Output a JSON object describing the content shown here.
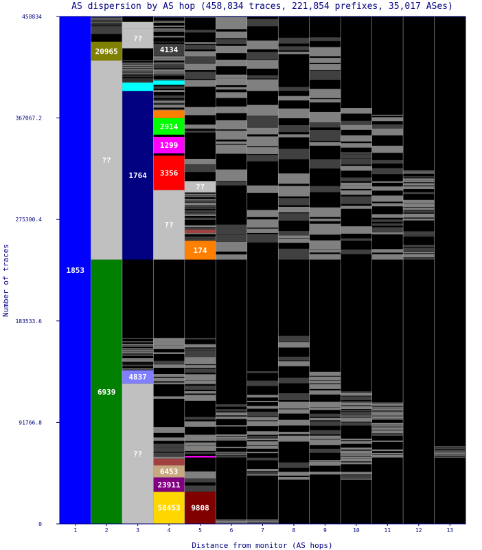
{
  "chart_data": {
    "type": "bar",
    "title": "AS dispersion by AS hop (458,834 traces, 221,854 prefixes, 35,017 ASes)",
    "xlabel": "Distance from monitor (AS hops)",
    "ylabel": "Number of traces",
    "ylim": [
      0,
      458834
    ],
    "yticks": [
      "0",
      "91766.8",
      "183533.6",
      "275300.4",
      "367067.2",
      "458834"
    ],
    "xticks": [
      "1",
      "2",
      "3",
      "4",
      "5",
      "6",
      "7",
      "8",
      "9",
      "10",
      "11",
      "12",
      "13"
    ],
    "grid": false,
    "legend": "none",
    "colors": {
      "background": "#000000",
      "divider": "#aaaaaa",
      "noise": "#808080",
      "noise_dark": "#404040"
    },
    "segments": [
      {
        "hop": 1,
        "y0": 0,
        "y1": 458834,
        "color": "#0000ff",
        "label": "1853"
      },
      {
        "hop": 2,
        "y0": 0,
        "y1": 239000,
        "color": "#008000",
        "label": "6939"
      },
      {
        "hop": 2,
        "y0": 239000,
        "y1": 419000,
        "color": "#c0c0c0",
        "label": "??"
      },
      {
        "hop": 2,
        "y0": 419000,
        "y1": 436000,
        "color": "#808000",
        "label": "20965"
      },
      {
        "hop": 2,
        "y0": 443000,
        "y1": 450000,
        "color": "#404040",
        "label": ""
      },
      {
        "hop": 3,
        "y0": 0,
        "y1": 127000,
        "color": "#c0c0c0",
        "label": "??"
      },
      {
        "hop": 3,
        "y0": 127000,
        "y1": 139000,
        "color": "#8080ff",
        "label": "4837"
      },
      {
        "hop": 3,
        "y0": 239000,
        "y1": 391500,
        "color": "#000080",
        "label": "1764"
      },
      {
        "hop": 3,
        "y0": 391500,
        "y1": 399000,
        "color": "#00ffff",
        "label": ""
      },
      {
        "hop": 3,
        "y0": 448000,
        "y1": 454000,
        "color": "#c0c0c0",
        "label": ""
      },
      {
        "hop": 3,
        "y0": 430000,
        "y1": 448000,
        "color": "#c0c0c0",
        "label": "??"
      },
      {
        "hop": 4,
        "y0": 0,
        "y1": 29000,
        "color": "#ffd700",
        "label": "58453"
      },
      {
        "hop": 4,
        "y0": 29000,
        "y1": 42000,
        "color": "#800080",
        "label": "23911"
      },
      {
        "hop": 4,
        "y0": 42000,
        "y1": 53000,
        "color": "#c8a880",
        "label": "6453"
      },
      {
        "hop": 4,
        "y0": 53000,
        "y1": 59000,
        "color": "#a04040",
        "label": ""
      },
      {
        "hop": 4,
        "y0": 239000,
        "y1": 302000,
        "color": "#c0c0c0",
        "label": "??"
      },
      {
        "hop": 4,
        "y0": 302000,
        "y1": 333000,
        "color": "#ff0000",
        "label": "3356"
      },
      {
        "hop": 4,
        "y0": 335000,
        "y1": 350000,
        "color": "#ff00ff",
        "label": "1299"
      },
      {
        "hop": 4,
        "y0": 352000,
        "y1": 367000,
        "color": "#00ff00",
        "label": "2914"
      },
      {
        "hop": 4,
        "y0": 367000,
        "y1": 374000,
        "color": "#ff8000",
        "label": ""
      },
      {
        "hop": 4,
        "y0": 397000,
        "y1": 401000,
        "color": "#00ffff",
        "label": ""
      },
      {
        "hop": 4,
        "y0": 424000,
        "y1": 434000,
        "color": "#404040",
        "label": "4134"
      },
      {
        "hop": 5,
        "y0": 0,
        "y1": 29000,
        "color": "#800000",
        "label": "9808"
      },
      {
        "hop": 5,
        "y0": 239000,
        "y1": 256000,
        "color": "#ff8000",
        "label": "174"
      },
      {
        "hop": 5,
        "y0": 300000,
        "y1": 310000,
        "color": "#c0c0c0",
        "label": "??"
      },
      {
        "hop": 5,
        "y0": 263000,
        "y1": 266000,
        "color": "#a04040",
        "label": ""
      },
      {
        "hop": 5,
        "y0": 60000,
        "y1": 61500,
        "color": "#ff00ff",
        "label": ""
      }
    ]
  }
}
